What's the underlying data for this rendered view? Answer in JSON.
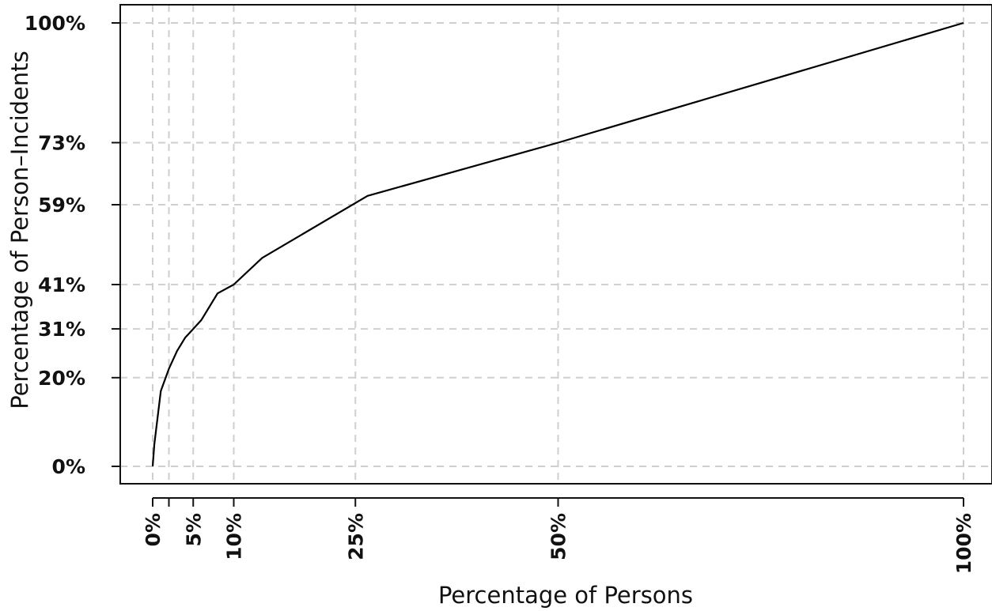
{
  "chart_data": {
    "type": "line",
    "title": "",
    "xlabel": "Percentage of Persons",
    "ylabel": "Percentage of Person–Incidents",
    "xlim": [
      -4,
      104
    ],
    "ylim": [
      -4,
      104
    ],
    "grid": true,
    "x_ticks": [
      {
        "value": 0,
        "label": "0%"
      },
      {
        "value": 2,
        "label": ""
      },
      {
        "value": 5,
        "label": "5%"
      },
      {
        "value": 10,
        "label": "10%"
      },
      {
        "value": 25,
        "label": "25%"
      },
      {
        "value": 50,
        "label": "50%"
      },
      {
        "value": 100,
        "label": "100%"
      }
    ],
    "y_ticks": [
      {
        "value": 0,
        "label": "0%"
      },
      {
        "value": 20,
        "label": "20%"
      },
      {
        "value": 31,
        "label": "31%"
      },
      {
        "value": 41,
        "label": "41%"
      },
      {
        "value": 59,
        "label": "59%"
      },
      {
        "value": 73,
        "label": "73%"
      },
      {
        "value": 100,
        "label": "100%"
      }
    ],
    "series": [
      {
        "x": [
          0,
          0.2,
          0.6,
          1.0,
          2.0,
          3.0,
          4.0,
          5.0,
          6.0,
          8.0,
          10.0,
          13.5,
          26.5,
          50.0,
          100.0
        ],
        "y": [
          0,
          5.0,
          11.0,
          17.0,
          22.0,
          26.0,
          29.0,
          31.0,
          33.0,
          39.0,
          41.0,
          47.0,
          61.0,
          73.0,
          100.0
        ]
      }
    ]
  }
}
